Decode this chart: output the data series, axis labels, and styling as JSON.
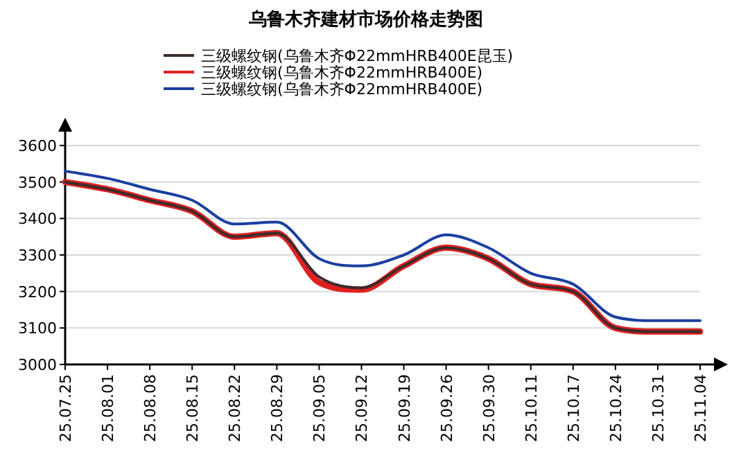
{
  "chart_data": {
    "type": "line",
    "title": "乌鲁木齐建材市场价格走势图",
    "categories": [
      "25.07.25",
      "25.08.01",
      "25.08.08",
      "25.08.15",
      "25.08.22",
      "25.08.29",
      "25.09.05",
      "25.09.12",
      "25.09.19",
      "25.09.26",
      "25.09.30",
      "25.10.11",
      "25.10.17",
      "25.10.24",
      "25.10.31",
      "25.11.04"
    ],
    "series": [
      {
        "name": "三级螺纹钢(乌鲁木齐Φ22mmHRB400E昆玉)",
        "color": "#3d2b2b",
        "values": [
          3500,
          3480,
          3450,
          3420,
          3350,
          3360,
          3240,
          3210,
          3270,
          3320,
          3290,
          3220,
          3200,
          3100,
          3090,
          3090
        ]
      },
      {
        "name": "三级螺纹钢(乌鲁木齐Φ22mmHRB400E)",
        "color": "#e02020",
        "values": [
          3500,
          3480,
          3450,
          3420,
          3350,
          3360,
          3225,
          3205,
          3270,
          3320,
          3290,
          3220,
          3200,
          3100,
          3090,
          3090
        ]
      },
      {
        "name": "三级螺纹钢(乌鲁木齐Φ22mmHRB400E)",
        "color": "#1a3fa0",
        "values": [
          3530,
          3510,
          3480,
          3450,
          3385,
          3390,
          3290,
          3270,
          3300,
          3355,
          3320,
          3250,
          3220,
          3130,
          3120,
          3120
        ]
      }
    ],
    "ylim": [
      3000,
      3600
    ],
    "yticks": [
      3000,
      3100,
      3200,
      3300,
      3400,
      3500,
      3600
    ],
    "grid": "y",
    "legend": "top",
    "marker": "none",
    "line_style": "solid"
  }
}
